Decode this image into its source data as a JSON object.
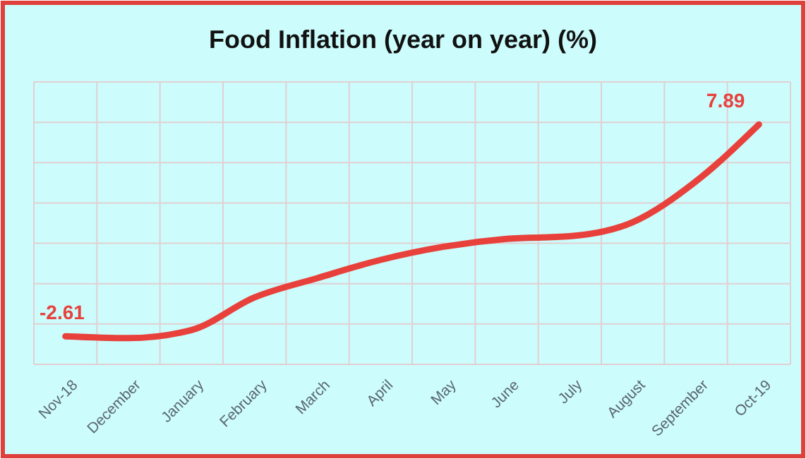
{
  "chart_data": {
    "type": "line",
    "title": "Food Inflation (year on year) (%)",
    "categories": [
      "Nov-18",
      "December",
      "January",
      "February",
      "March",
      "April",
      "May",
      "June",
      "July",
      "August",
      "September",
      "Oct-19"
    ],
    "series": [
      {
        "color": "#e8413c",
        "values": [
          -2.61,
          -2.7,
          -2.3,
          -0.68,
          0.28,
          1.18,
          1.83,
          2.22,
          2.35,
          3.05,
          5.07,
          7.89
        ],
        "value_labels": [
          "-2.61",
          null,
          null,
          null,
          null,
          null,
          null,
          null,
          null,
          null,
          null,
          "7.89"
        ]
      }
    ],
    "ylim": [
      -4,
      10
    ],
    "yticks": [
      {
        "value": -4,
        "label": null
      },
      {
        "value": -2,
        "label": null
      },
      {
        "value": 0,
        "label": null
      },
      {
        "value": 2,
        "label": null
      },
      {
        "value": 4,
        "label": null
      },
      {
        "value": 6,
        "label": null
      },
      {
        "value": 8,
        "label": null
      },
      {
        "value": 10,
        "label": null
      }
    ],
    "grid": true,
    "tick_labels": "x",
    "marker": "none",
    "line_style": "solid"
  }
}
